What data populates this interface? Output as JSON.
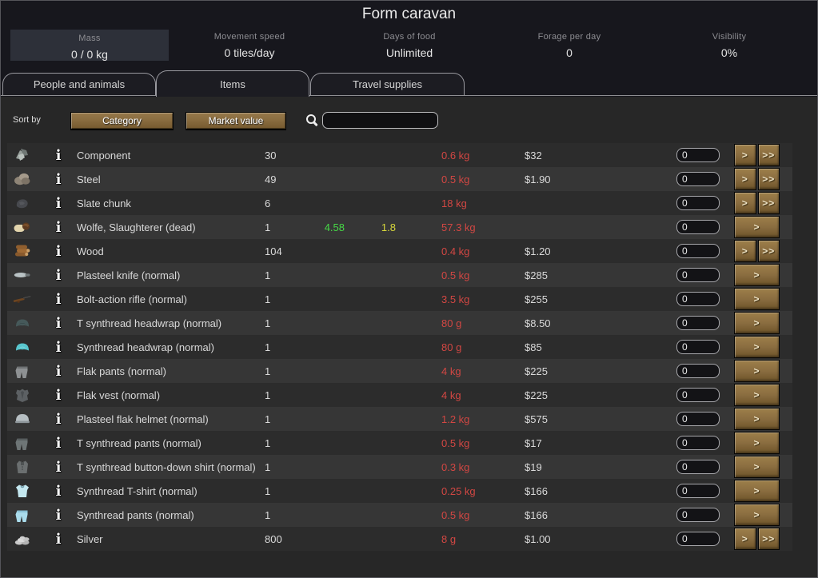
{
  "window": {
    "title": "Form caravan"
  },
  "stats": [
    {
      "label": "Mass",
      "value": "0 / 0 kg"
    },
    {
      "label": "Movement speed",
      "value": "0 tiles/day"
    },
    {
      "label": "Days of food",
      "value": "Unlimited"
    },
    {
      "label": "Forage per day",
      "value": "0"
    },
    {
      "label": "Visibility",
      "value": "0%"
    }
  ],
  "tabs": [
    {
      "label": "People and animals",
      "active": false
    },
    {
      "label": "Items",
      "active": true
    },
    {
      "label": "Travel supplies",
      "active": false
    }
  ],
  "sort": {
    "label": "Sort by",
    "buttons": [
      "Category",
      "Market value"
    ],
    "search_value": "",
    "search_placeholder": ""
  },
  "controls": {
    "info_glyph": "i",
    "transfer_one": ">",
    "transfer_all": ">>"
  },
  "colors": {
    "mass_red": "#d24743",
    "stat_green": "#46d846",
    "stat_yellow": "#d8d83c",
    "button_brown": "#8a6d40",
    "content_bg": "#272727",
    "header_bg": "#17171d"
  },
  "table": {
    "rows": [
      {
        "icon": "component-icon",
        "label": "Component",
        "count": "30",
        "green": "",
        "yellow": "",
        "mass": "0.6 kg",
        "value": "$32",
        "qty": "0",
        "buttons": "double"
      },
      {
        "icon": "steel-icon",
        "label": "Steel",
        "count": "49",
        "green": "",
        "yellow": "",
        "mass": "0.5 kg",
        "value": "$1.90",
        "qty": "0",
        "buttons": "double"
      },
      {
        "icon": "slate-chunk-icon",
        "label": "Slate chunk",
        "count": "6",
        "green": "",
        "yellow": "",
        "mass": "18 kg",
        "value": "",
        "qty": "0",
        "buttons": "double"
      },
      {
        "icon": "corpse-icon",
        "label": "Wolfe, Slaughterer (dead)",
        "count": "1",
        "green": "4.58",
        "yellow": "1.8",
        "mass": "57.3 kg",
        "value": "",
        "qty": "0",
        "buttons": "single"
      },
      {
        "icon": "wood-icon",
        "label": "Wood",
        "count": "104",
        "green": "",
        "yellow": "",
        "mass": "0.4 kg",
        "value": "$1.20",
        "qty": "0",
        "buttons": "double"
      },
      {
        "icon": "knife-icon",
        "label": "Plasteel knife (normal)",
        "count": "1",
        "green": "",
        "yellow": "",
        "mass": "0.5 kg",
        "value": "$285",
        "qty": "0",
        "buttons": "single"
      },
      {
        "icon": "rifle-icon",
        "label": "Bolt-action rifle (normal)",
        "count": "1",
        "green": "",
        "yellow": "",
        "mass": "3.5 kg",
        "value": "$255",
        "qty": "0",
        "buttons": "single"
      },
      {
        "icon": "headwrap-dark-icon",
        "label": "T synthread headwrap (normal)",
        "count": "1",
        "green": "",
        "yellow": "",
        "mass": "80 g",
        "value": "$8.50",
        "qty": "0",
        "buttons": "single"
      },
      {
        "icon": "headwrap-cyan-icon",
        "label": "Synthread headwrap (normal)",
        "count": "1",
        "green": "",
        "yellow": "",
        "mass": "80 g",
        "value": "$85",
        "qty": "0",
        "buttons": "single"
      },
      {
        "icon": "flak-pants-icon",
        "label": "Flak pants (normal)",
        "count": "1",
        "green": "",
        "yellow": "",
        "mass": "4 kg",
        "value": "$225",
        "qty": "0",
        "buttons": "single"
      },
      {
        "icon": "flak-vest-icon",
        "label": "Flak vest (normal)",
        "count": "1",
        "green": "",
        "yellow": "",
        "mass": "4 kg",
        "value": "$225",
        "qty": "0",
        "buttons": "single"
      },
      {
        "icon": "flak-helmet-icon",
        "label": "Plasteel flak helmet (normal)",
        "count": "1",
        "green": "",
        "yellow": "",
        "mass": "1.2 kg",
        "value": "$575",
        "qty": "0",
        "buttons": "single"
      },
      {
        "icon": "pants-gray-icon",
        "label": "T synthread pants (normal)",
        "count": "1",
        "green": "",
        "yellow": "",
        "mass": "0.5 kg",
        "value": "$17",
        "qty": "0",
        "buttons": "single"
      },
      {
        "icon": "shirt-gray-icon",
        "label": "T synthread button-down shirt (normal)",
        "count": "1",
        "green": "",
        "yellow": "",
        "mass": "0.3 kg",
        "value": "$19",
        "qty": "0",
        "buttons": "single"
      },
      {
        "icon": "tshirt-blue-icon",
        "label": "Synthread T-shirt (normal)",
        "count": "1",
        "green": "",
        "yellow": "",
        "mass": "0.25 kg",
        "value": "$166",
        "qty": "0",
        "buttons": "single"
      },
      {
        "icon": "pants-blue-icon",
        "label": "Synthread pants (normal)",
        "count": "1",
        "green": "",
        "yellow": "",
        "mass": "0.5 kg",
        "value": "$166",
        "qty": "0",
        "buttons": "single"
      },
      {
        "icon": "silver-icon",
        "label": "Silver",
        "count": "800",
        "green": "",
        "yellow": "",
        "mass": "8 g",
        "value": "$1.00",
        "qty": "0",
        "buttons": "double"
      }
    ]
  }
}
